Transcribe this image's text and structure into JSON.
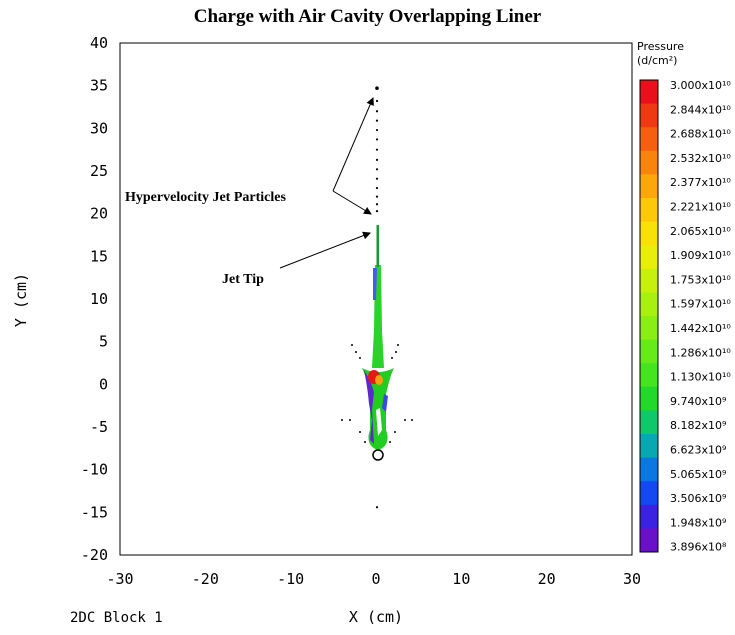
{
  "chart_data": {
    "type": "heatmap",
    "title": "Charge with Air Cavity Overlapping Liner",
    "xlabel": "X (cm)",
    "ylabel": "Y (cm)",
    "xlim": [
      -30,
      30
    ],
    "ylim": [
      -20,
      40
    ],
    "x_ticks": [
      "-30",
      "-20",
      "-10",
      "0",
      "10",
      "20",
      "30"
    ],
    "y_ticks": [
      "40",
      "35",
      "30",
      "25",
      "20",
      "15",
      "10",
      "5",
      "0",
      "-5",
      "-10",
      "-15",
      "-20"
    ],
    "footer_left": "2DC  Block  1",
    "annotations": [
      {
        "text": "Hypervelocity Jet Particles",
        "arrow_targets": [
          [
            -0.6,
            34
          ],
          [
            -1.0,
            20
          ]
        ]
      },
      {
        "text": "Jet Tip",
        "arrow_targets": [
          [
            -0.8,
            17.8
          ]
        ]
      }
    ],
    "colorbar": {
      "title_line1": "Pressure",
      "title_line2": "(d/cm²)",
      "labels": [
        "3.000x10¹⁰",
        "2.844x10¹⁰",
        "2.688x10¹⁰",
        "2.532x10¹⁰",
        "2.377x10¹⁰",
        "2.221x10¹⁰",
        "2.065x10¹⁰",
        "1.909x10¹⁰",
        "1.753x10¹⁰",
        "1.597x10¹⁰",
        "1.442x10¹⁰",
        "1.286x10¹⁰",
        "1.130x10¹⁰",
        "9.740x10⁹",
        "8.182x10⁹",
        "6.623x10⁹",
        "5.065x10⁹",
        "3.506x10⁹",
        "1.948x10⁹",
        "3.896x10⁸"
      ],
      "colors": [
        "#e8101a",
        "#ee3a12",
        "#f46010",
        "#f8840e",
        "#fca80c",
        "#fcc80a",
        "#f8e008",
        "#e8ee0a",
        "#c8f00e",
        "#a8f012",
        "#88ee16",
        "#66ea1a",
        "#44e41e",
        "#22d82a",
        "#10c86a",
        "#08a8b0",
        "#0a78e0",
        "#1448f0",
        "#3a22e0",
        "#6a10c8"
      ]
    },
    "jet_particles": [
      [
        0,
        34.7
      ],
      [
        0,
        33.2
      ],
      [
        0,
        32.0
      ],
      [
        0,
        30.9
      ],
      [
        0,
        29.8
      ],
      [
        0,
        28.7
      ],
      [
        0,
        27.5
      ],
      [
        0,
        26.3
      ],
      [
        0,
        25.2
      ],
      [
        0,
        24.1
      ],
      [
        0,
        23.0
      ],
      [
        0,
        22.0
      ],
      [
        0,
        21.1
      ],
      [
        0,
        20.3
      ],
      [
        0,
        -14.4
      ]
    ]
  }
}
